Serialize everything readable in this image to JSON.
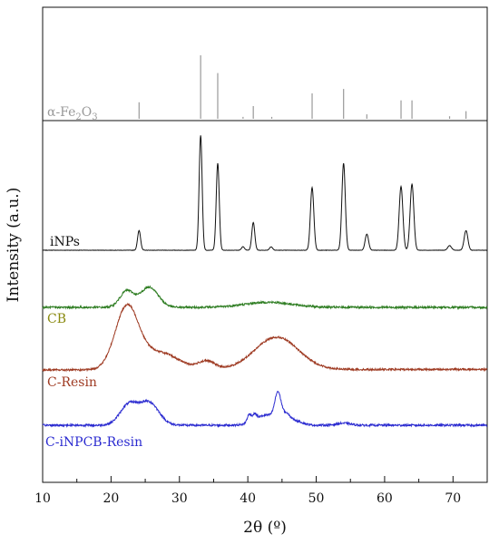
{
  "chart_data": {
    "type": "line",
    "title": "",
    "xlabel": "2θ (º)",
    "ylabel": "Intensity (a.u.)",
    "xlim": [
      10,
      75
    ],
    "x_ticks": [
      10,
      20,
      30,
      40,
      50,
      60,
      70
    ],
    "x_tick_minor_step": 5,
    "y_ticks": [],
    "grid": false,
    "legend": "none (series labelled inline on the left)",
    "reference": {
      "name": "α-Fe2O3",
      "label_base": "α-Fe",
      "label_sub1": "2",
      "label_mid": "O",
      "label_sub2": "3",
      "color": "#999999",
      "sticks": [
        {
          "x": 24.1,
          "h": 0.26
        },
        {
          "x": 33.1,
          "h": 1.0
        },
        {
          "x": 35.6,
          "h": 0.72
        },
        {
          "x": 39.3,
          "h": 0.03
        },
        {
          "x": 40.8,
          "h": 0.2
        },
        {
          "x": 43.5,
          "h": 0.03
        },
        {
          "x": 49.4,
          "h": 0.4
        },
        {
          "x": 54.0,
          "h": 0.47
        },
        {
          "x": 57.4,
          "h": 0.07
        },
        {
          "x": 62.4,
          "h": 0.29
        },
        {
          "x": 64.0,
          "h": 0.29
        },
        {
          "x": 69.5,
          "h": 0.04
        },
        {
          "x": 71.9,
          "h": 0.12
        }
      ]
    },
    "series": [
      {
        "name": "iNPs",
        "color": "#111111",
        "noise": 0.003,
        "baseline": 0.0,
        "peaks": [
          {
            "x": 24.1,
            "h": 0.17,
            "w": 0.22
          },
          {
            "x": 33.1,
            "h": 0.99,
            "w": 0.22
          },
          {
            "x": 35.6,
            "h": 0.75,
            "w": 0.22
          },
          {
            "x": 39.3,
            "h": 0.03,
            "w": 0.22
          },
          {
            "x": 40.8,
            "h": 0.24,
            "w": 0.22
          },
          {
            "x": 43.4,
            "h": 0.03,
            "w": 0.22
          },
          {
            "x": 49.4,
            "h": 0.54,
            "w": 0.25
          },
          {
            "x": 54.0,
            "h": 0.75,
            "w": 0.25
          },
          {
            "x": 57.4,
            "h": 0.14,
            "w": 0.25
          },
          {
            "x": 62.4,
            "h": 0.55,
            "w": 0.27
          },
          {
            "x": 64.0,
            "h": 0.57,
            "w": 0.27
          },
          {
            "x": 69.5,
            "h": 0.04,
            "w": 0.27
          },
          {
            "x": 71.9,
            "h": 0.17,
            "w": 0.27
          }
        ]
      },
      {
        "name": "CB",
        "color": "#2e7d22",
        "noise": 0.02,
        "baseline": 0.0,
        "peaks": [
          {
            "x": 22.3,
            "h": 0.16,
            "w": 1.0
          },
          {
            "x": 25.6,
            "h": 0.2,
            "w": 1.3
          },
          {
            "x": 43.0,
            "h": 0.05,
            "w": 3.5
          }
        ]
      },
      {
        "name": "C-Resin",
        "color": "#9e3a22",
        "noise": 0.018,
        "baseline": 0.0,
        "peaks": [
          {
            "x": 22.3,
            "h": 0.6,
            "w": 1.7
          },
          {
            "x": 27.0,
            "h": 0.17,
            "w": 2.8
          },
          {
            "x": 34.0,
            "h": 0.08,
            "w": 1.2
          },
          {
            "x": 44.2,
            "h": 0.32,
            "w": 3.2
          }
        ]
      },
      {
        "name": "C-iNPCB-Resin",
        "color": "#2a2ad0",
        "noise": 0.02,
        "baseline": 0.0,
        "peaks": [
          {
            "x": 22.6,
            "h": 0.2,
            "w": 1.3
          },
          {
            "x": 25.6,
            "h": 0.22,
            "w": 1.4
          },
          {
            "x": 40.2,
            "h": 0.08,
            "w": 0.3
          },
          {
            "x": 41.0,
            "h": 0.06,
            "w": 0.3
          },
          {
            "x": 42.8,
            "h": 0.1,
            "w": 1.6
          },
          {
            "x": 44.4,
            "h": 0.26,
            "w": 0.45
          },
          {
            "x": 45.6,
            "h": 0.08,
            "w": 0.6
          },
          {
            "x": 47.0,
            "h": 0.04,
            "w": 1.0
          },
          {
            "x": 54.0,
            "h": 0.02,
            "w": 1.0
          }
        ]
      }
    ]
  }
}
